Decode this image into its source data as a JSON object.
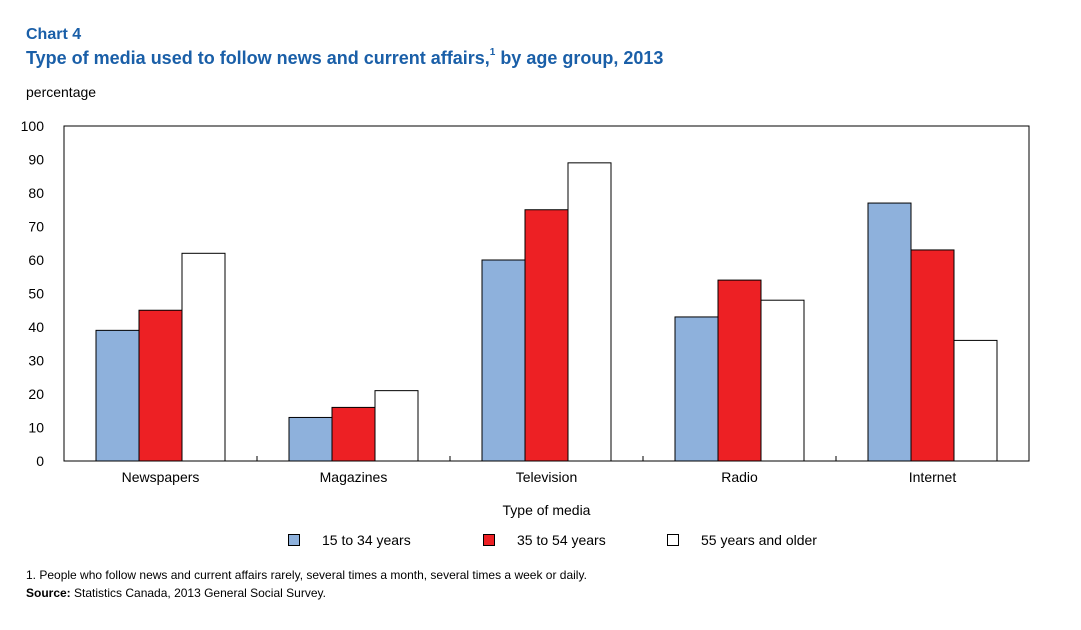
{
  "header": {
    "chart_number": "Chart 4",
    "title": "Type of media used to follow news and current affairs,",
    "title_footnote_ref": "1",
    "title_suffix": " by age group, 2013"
  },
  "footer": {
    "footnote": "1. People who follow news and current affairs rarely, several times a month, several times a week or daily.",
    "source_label": "Source:",
    "source_text": " Statistics Canada, 2013 General Social Survey."
  },
  "chart_data": {
    "type": "bar",
    "title": "Type of media used to follow news and current affairs, by age group, 2013",
    "xlabel": "Type of media",
    "ylabel": "percentage",
    "ylim": [
      0,
      100
    ],
    "yticks": [
      "0",
      "10",
      "20",
      "30",
      "40",
      "50",
      "60",
      "70",
      "80",
      "90",
      "100"
    ],
    "categories": [
      "Newspapers",
      "Magazines",
      "Television",
      "Radio",
      "Internet"
    ],
    "grid": false,
    "legend_position": "bottom",
    "series": [
      {
        "name": "15 to 34 years",
        "values": [
          39,
          13,
          60,
          43,
          77
        ],
        "color": "#8eb1dc"
      },
      {
        "name": "35 to 54 years",
        "values": [
          45,
          16,
          75,
          54,
          63
        ],
        "color": "#ed2024"
      },
      {
        "name": "55 years and older",
        "values": [
          62,
          21,
          89,
          48,
          36
        ],
        "color": "#ffffff"
      }
    ]
  }
}
